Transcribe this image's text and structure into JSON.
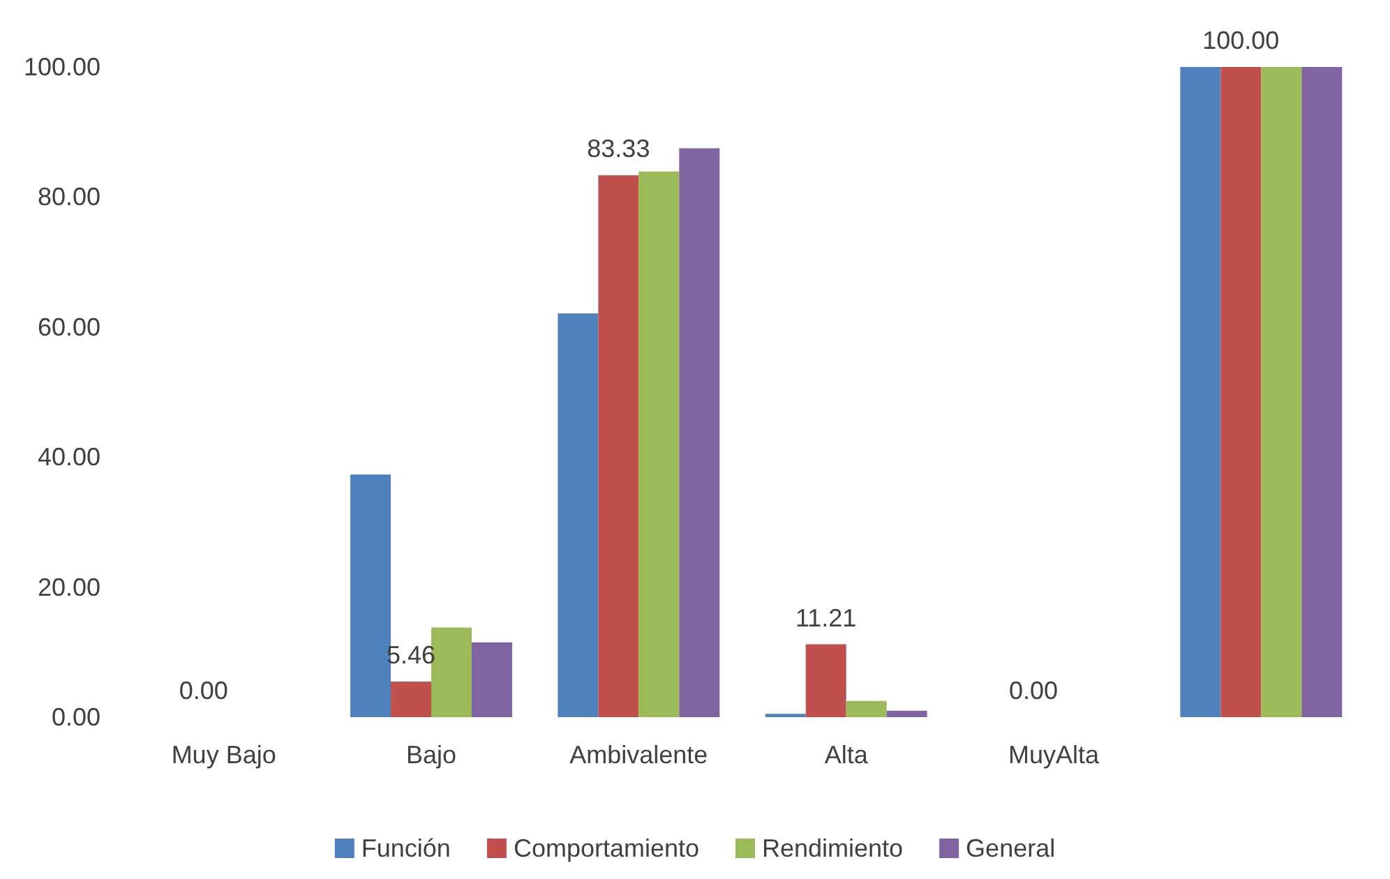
{
  "chart_data": {
    "type": "bar",
    "categories": [
      "Muy Bajo",
      "Bajo",
      "Ambivalente",
      "Alta",
      "MuyAlta",
      null
    ],
    "series": [
      {
        "name": "Función",
        "color": "#4f81bd",
        "values": [
          0,
          37.3,
          62.1,
          0.5,
          0,
          100
        ]
      },
      {
        "name": "Comportamiento",
        "color": "#c0504d",
        "values": [
          0,
          5.46,
          83.33,
          11.21,
          0,
          100
        ],
        "value_labels": [
          "0.00",
          "5.46",
          "83.33",
          "11.21",
          "0.00",
          "100.00"
        ]
      },
      {
        "name": "Rendimiento",
        "color": "#9bbb59",
        "values": [
          0,
          13.8,
          83.9,
          2.5,
          0,
          100
        ]
      },
      {
        "name": "General",
        "color": "#8064a2",
        "values": [
          0,
          11.5,
          87.5,
          1.0,
          0,
          100
        ]
      }
    ],
    "ylim": [
      0,
      100
    ],
    "yticks": [
      {
        "value": 0,
        "label": "0.00"
      },
      {
        "value": 20,
        "label": "20.00"
      },
      {
        "value": 40,
        "label": "40.00"
      },
      {
        "value": 60,
        "label": "60.00"
      },
      {
        "value": 80,
        "label": "80.00"
      },
      {
        "value": 100,
        "label": "100.00"
      }
    ],
    "grid": false,
    "legend": "bottom"
  }
}
